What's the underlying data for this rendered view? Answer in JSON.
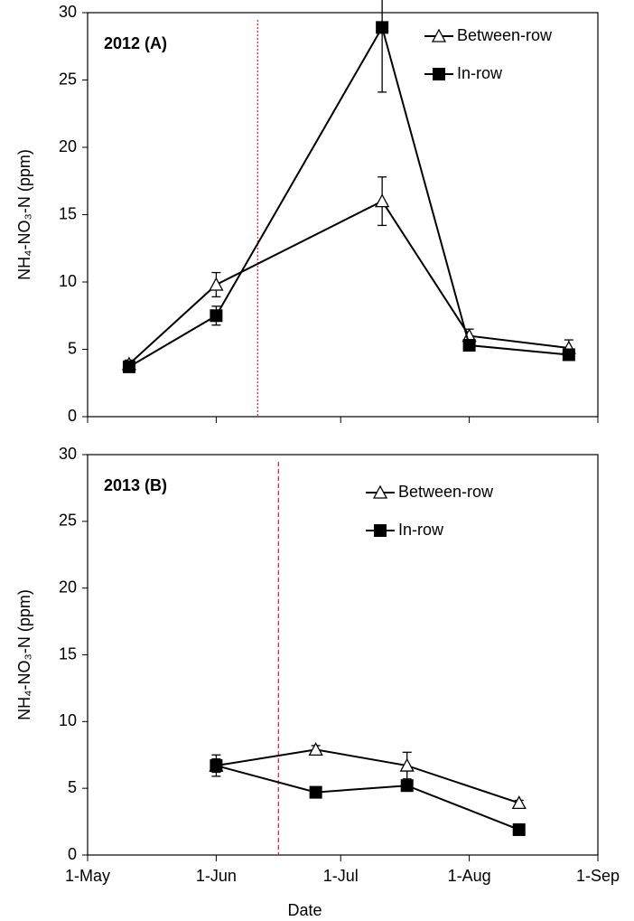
{
  "chart_data": [
    {
      "type": "line",
      "annotation": "2012 (A)",
      "ylabel": "NH₄-NO₃-N (ppm)",
      "x": [
        10,
        31,
        71,
        92,
        116
      ],
      "xlim": [
        0,
        123
      ],
      "xticks": [
        0,
        31,
        61,
        92,
        123
      ],
      "xtick_labels_shown": false,
      "ylim": [
        0,
        30
      ],
      "yticks": [
        0,
        5,
        10,
        15,
        20,
        25,
        30
      ],
      "legend": "upper right",
      "reference_line": {
        "x": 41,
        "color": "#e03030",
        "style": "dotted"
      },
      "series": [
        {
          "name": "Between-row",
          "color": "#000000",
          "marker": "open-triangle",
          "values": [
            3.9,
            9.8,
            16.0,
            6.0,
            5.1
          ],
          "errors": [
            0.3,
            0.9,
            1.8,
            0.5,
            0.6
          ]
        },
        {
          "name": "In-row",
          "color": "#000000",
          "marker": "filled-square",
          "values": [
            3.7,
            7.5,
            28.9,
            5.3,
            4.6
          ],
          "errors": [
            0.3,
            0.7,
            4.8,
            0.3,
            0.3
          ]
        }
      ]
    },
    {
      "type": "line",
      "annotation": "2013 (B)",
      "ylabel": "NH₄-NO₃-N (ppm)",
      "xlabel": "Date",
      "x": [
        31,
        55,
        77,
        104
      ],
      "xlim": [
        0,
        123
      ],
      "xticks": [
        {
          "value": 0,
          "label": "1-May"
        },
        {
          "value": 31,
          "label": "1-Jun"
        },
        {
          "value": 61,
          "label": "1-Jul"
        },
        {
          "value": 92,
          "label": "1-Aug"
        },
        {
          "value": 123,
          "label": "1-Sep"
        }
      ],
      "xtick_labels_shown": true,
      "ylim": [
        0,
        30
      ],
      "yticks": [
        0,
        5,
        10,
        15,
        20,
        25,
        30
      ],
      "legend": "upper right",
      "reference_line": {
        "x": 46,
        "color": "#e03030",
        "style": "dashed"
      },
      "series": [
        {
          "name": "Between-row",
          "color": "#000000",
          "marker": "open-triangle",
          "values": [
            6.7,
            7.9,
            6.7,
            3.9
          ],
          "errors": [
            0.8,
            0.3,
            1.0,
            0.2
          ]
        },
        {
          "name": "In-row",
          "color": "#000000",
          "marker": "filled-square",
          "values": [
            6.7,
            4.7,
            5.2,
            1.9
          ],
          "errors": [
            0.5,
            0.2,
            0.3,
            0.2
          ]
        }
      ]
    }
  ]
}
